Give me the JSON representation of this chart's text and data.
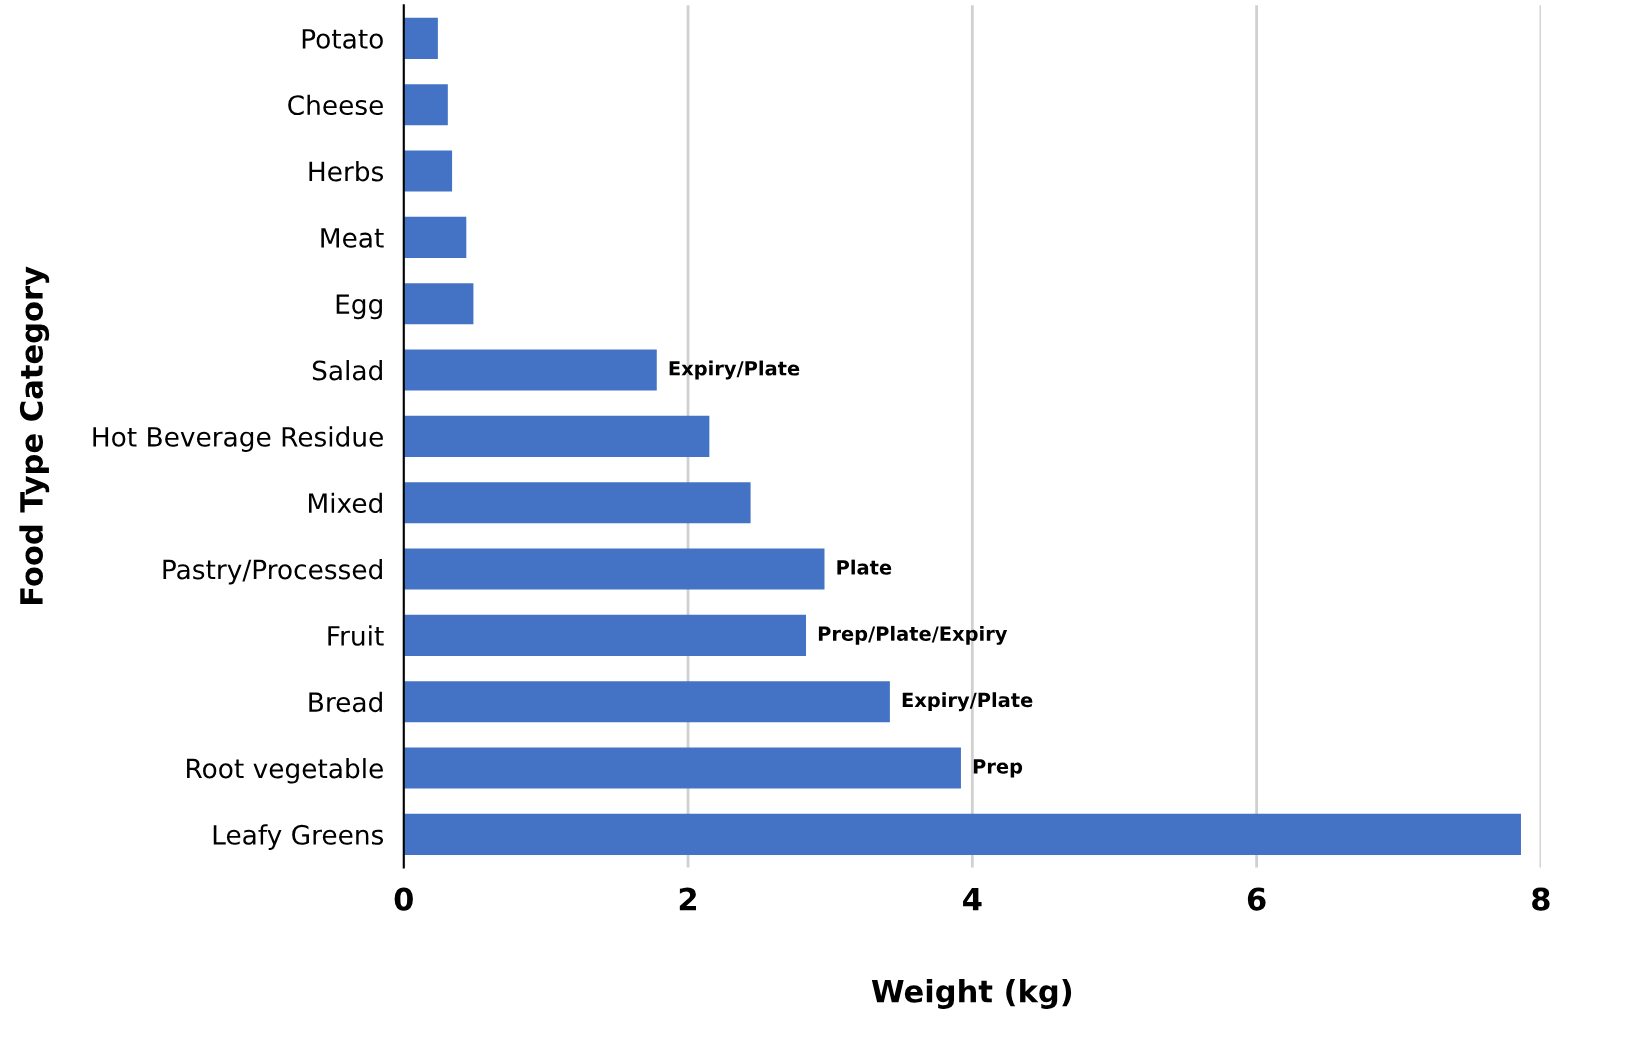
{
  "chart_data": {
    "type": "bar",
    "orientation": "horizontal",
    "xlabel": "Weight (kg)",
    "ylabel": "Food Type Category",
    "categories": [
      "Potato",
      "Cheese",
      "Herbs",
      "Meat",
      "Egg",
      "Salad",
      "Hot Beverage Residue",
      "Mixed",
      "Pastry/Processed",
      "Fruit",
      "Bread",
      "Root vegetable",
      "Leafy Greens"
    ],
    "values": [
      0.24,
      0.31,
      0.34,
      0.44,
      0.49,
      1.78,
      2.15,
      2.44,
      2.96,
      2.83,
      3.42,
      3.92,
      7.86
    ],
    "value_labels": [
      null,
      null,
      null,
      null,
      null,
      "Expiry/Plate",
      null,
      null,
      "Plate",
      "Prep/Plate/Expiry",
      "Expiry/Plate",
      "Prep",
      null
    ],
    "color": "#4472c4",
    "xlim": [
      0,
      8
    ],
    "xticks": [
      0,
      2,
      4,
      6,
      8
    ],
    "grid": "x"
  }
}
